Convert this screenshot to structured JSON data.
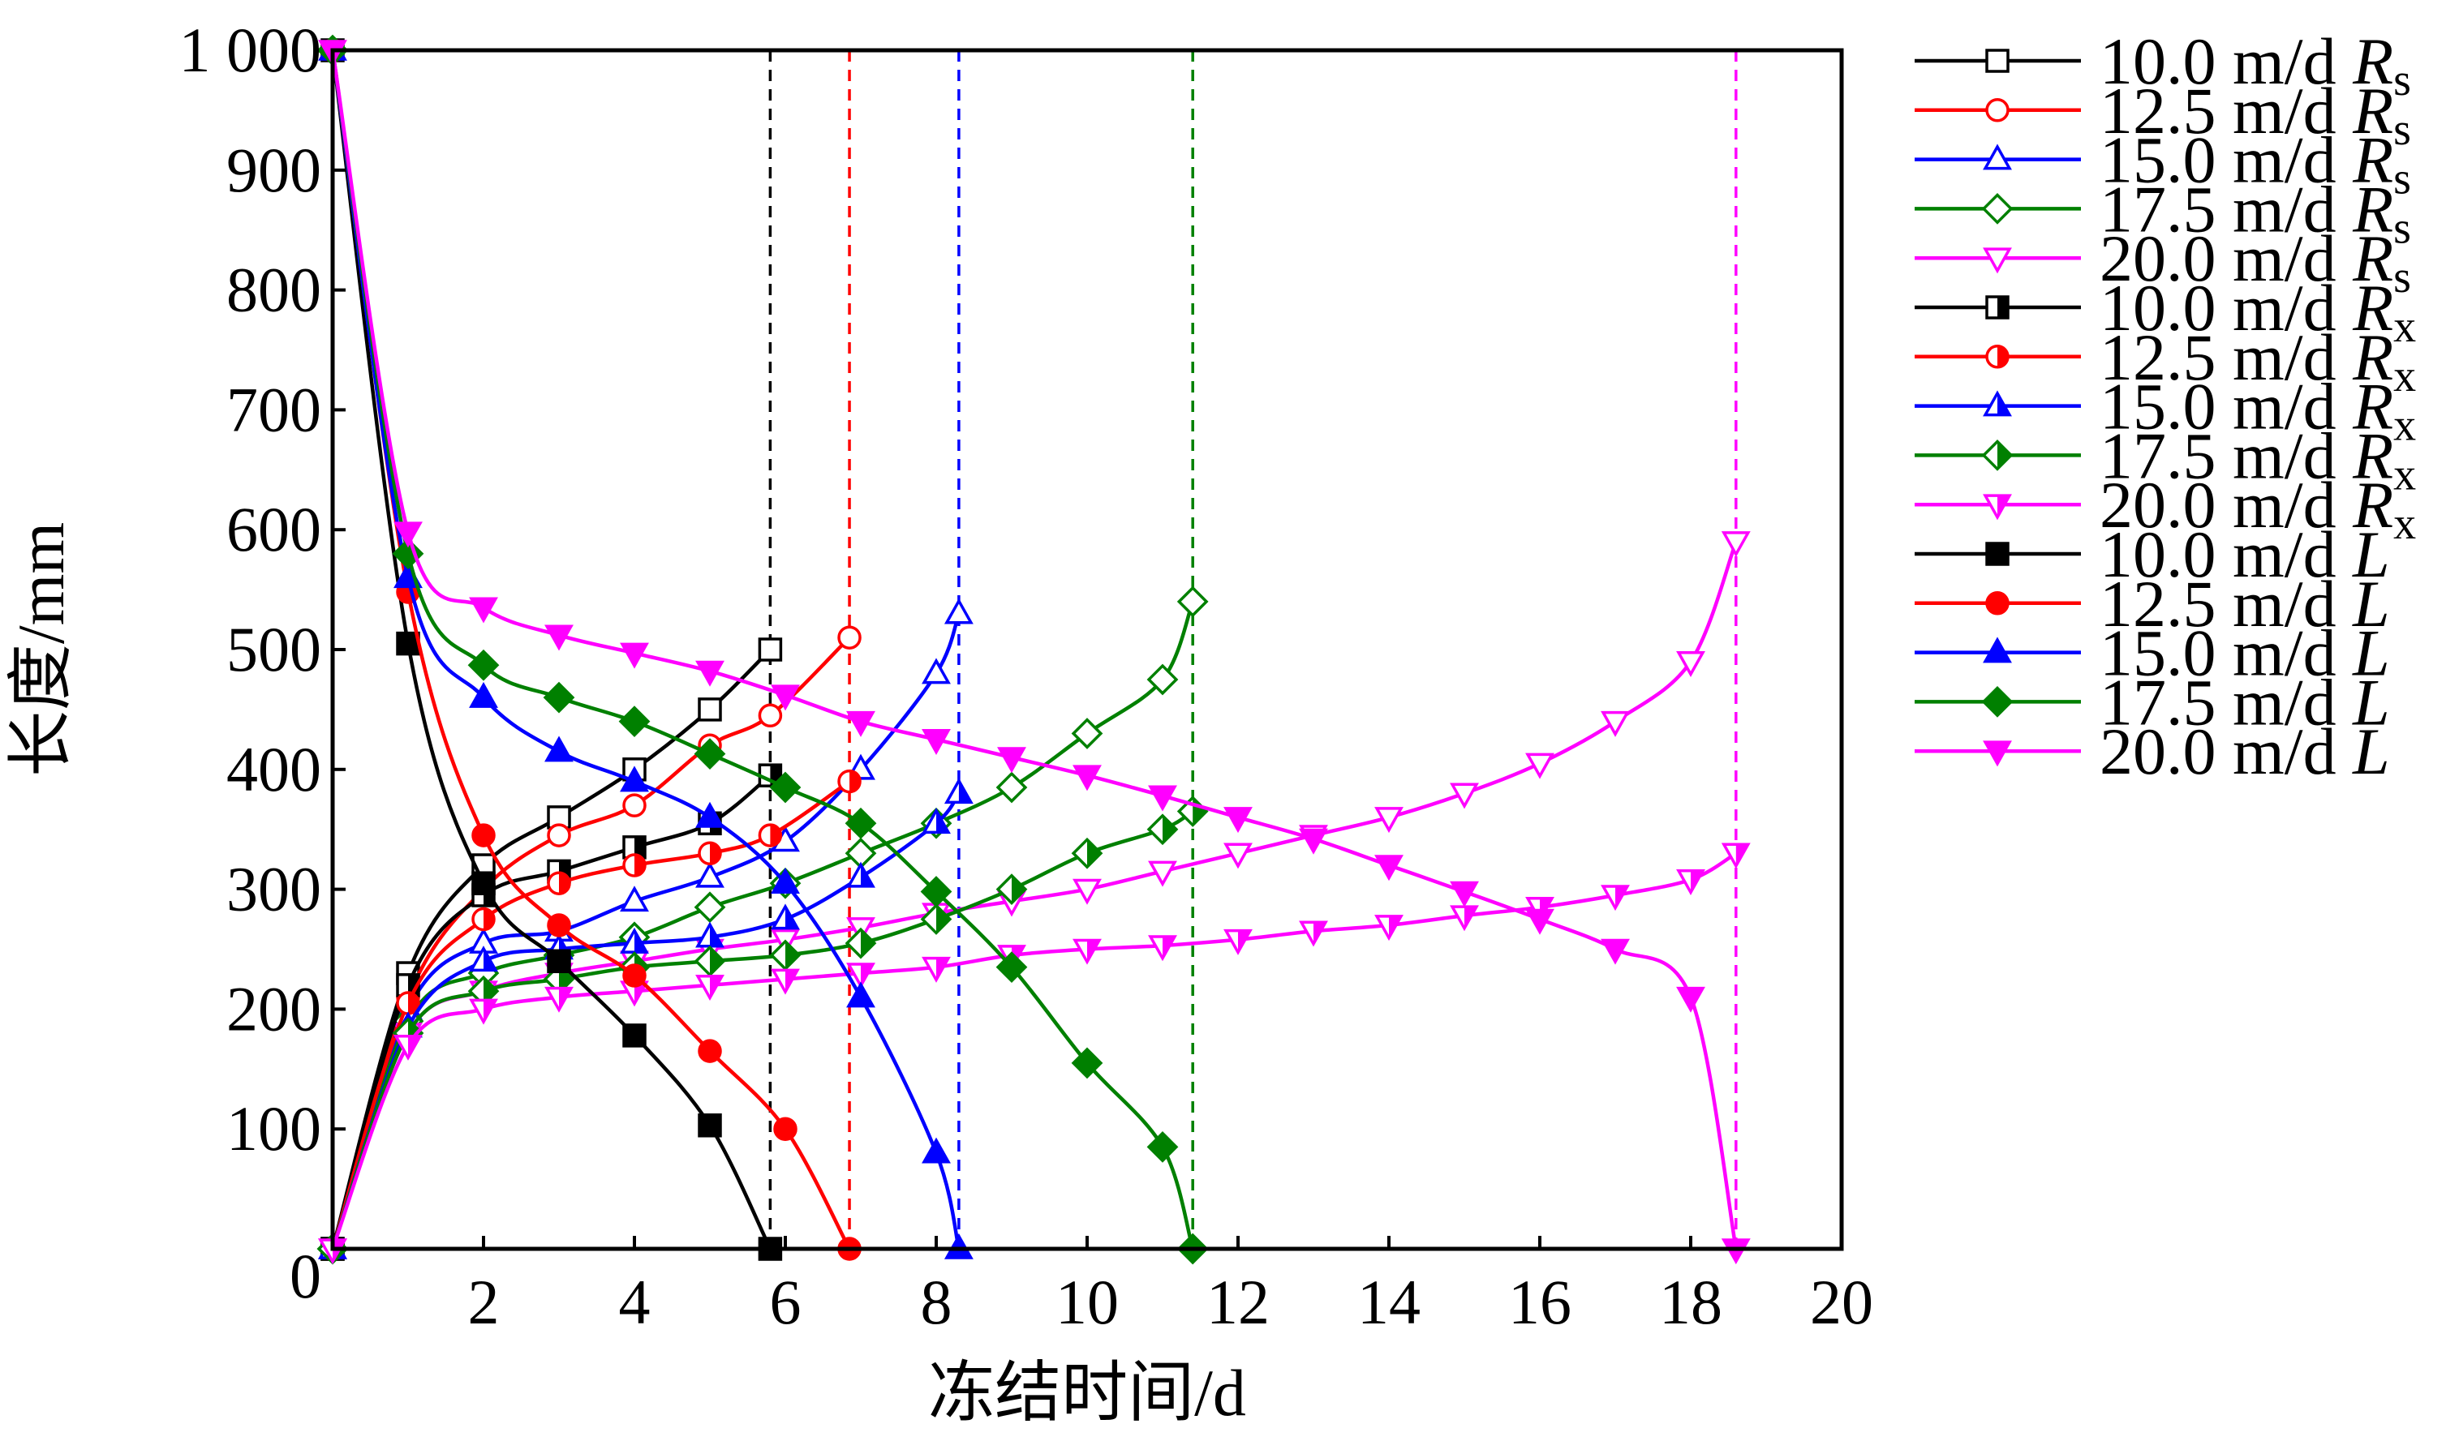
{
  "chart_data": {
    "type": "line",
    "title": "",
    "xlabel": "冻结时间/d",
    "ylabel": "长度/mm",
    "xlim": [
      0,
      20
    ],
    "ylim": [
      0,
      1000
    ],
    "xticks": [
      2,
      4,
      6,
      8,
      10,
      12,
      14,
      16,
      18,
      20
    ],
    "xtick_labels": [
      "2",
      "4",
      "6",
      "8",
      "10",
      "12",
      "14",
      "16",
      "18",
      "20"
    ],
    "yticks": [
      0,
      100,
      200,
      300,
      400,
      500,
      600,
      700,
      800,
      900,
      1000
    ],
    "ytick_labels": [
      "0",
      "100",
      "200",
      "300",
      "400",
      "500",
      "600",
      "700",
      "800",
      "900",
      "1 000"
    ],
    "x_origin_label": "0",
    "grid": false,
    "legend_position": "outside-right",
    "colors": {
      "10.0": "#000000",
      "12.5": "#ff0000",
      "15.0": "#0000ff",
      "17.5": "#008000",
      "20.0": "#ff00ff"
    },
    "markers": {
      "10.0": "square",
      "12.5": "circle",
      "15.0": "triangle-up",
      "17.5": "diamond",
      "20.0": "triangle-down"
    },
    "vlines": [
      {
        "x": 5.8,
        "color": "#000000"
      },
      {
        "x": 6.85,
        "color": "#ff0000"
      },
      {
        "x": 8.3,
        "color": "#0000ff"
      },
      {
        "x": 11.4,
        "color": "#008000"
      },
      {
        "x": 18.6,
        "color": "#ff00ff"
      }
    ],
    "series": [
      {
        "name": "10.0 m/d Rs",
        "speed": "10.0",
        "quantity": "Rs",
        "fill": "open",
        "x": [
          0,
          1,
          2,
          3,
          4,
          5,
          5.8
        ],
        "y": [
          0,
          230,
          320,
          360,
          400,
          450,
          500
        ]
      },
      {
        "name": "12.5 m/d Rs",
        "speed": "12.5",
        "quantity": "Rs",
        "fill": "open",
        "x": [
          0,
          1,
          2,
          3,
          4,
          5,
          5.8,
          6.85
        ],
        "y": [
          0,
          210,
          300,
          345,
          370,
          420,
          445,
          510
        ]
      },
      {
        "name": "15.0 m/d Rs",
        "speed": "15.0",
        "quantity": "Rs",
        "fill": "open",
        "x": [
          0,
          1,
          2,
          3,
          4,
          5,
          6,
          7,
          8,
          8.3
        ],
        "y": [
          0,
          200,
          255,
          265,
          290,
          310,
          340,
          400,
          480,
          530
        ]
      },
      {
        "name": "17.5 m/d Rs",
        "speed": "17.5",
        "quantity": "Rs",
        "fill": "open",
        "x": [
          0,
          1,
          2,
          3,
          4,
          5,
          6,
          7,
          8,
          9,
          10,
          11,
          11.4
        ],
        "y": [
          0,
          190,
          230,
          245,
          260,
          285,
          305,
          330,
          355,
          385,
          430,
          475,
          540
        ]
      },
      {
        "name": "20.0 m/d Rs",
        "speed": "20.0",
        "quantity": "Rs",
        "fill": "open",
        "x": [
          0,
          1,
          2,
          3,
          4,
          5,
          6,
          7,
          8,
          9,
          10,
          11,
          12,
          13,
          14,
          15,
          16,
          17,
          18,
          18.6
        ],
        "y": [
          0,
          180,
          215,
          230,
          240,
          250,
          258,
          268,
          280,
          290,
          300,
          315,
          330,
          345,
          360,
          380,
          405,
          440,
          490,
          590
        ]
      },
      {
        "name": "10.0 m/d Rx",
        "speed": "10.0",
        "quantity": "Rx",
        "fill": "half",
        "x": [
          0,
          1,
          2,
          3,
          4,
          5,
          5.8
        ],
        "y": [
          0,
          220,
          295,
          315,
          335,
          355,
          395
        ]
      },
      {
        "name": "12.5 m/d Rx",
        "speed": "12.5",
        "quantity": "Rx",
        "fill": "half",
        "x": [
          0,
          1,
          2,
          3,
          4,
          5,
          5.8,
          6.85
        ],
        "y": [
          0,
          205,
          275,
          305,
          320,
          330,
          345,
          390
        ]
      },
      {
        "name": "15.0 m/d Rx",
        "speed": "15.0",
        "quantity": "Rx",
        "fill": "half",
        "x": [
          0,
          1,
          2,
          3,
          4,
          5,
          6,
          7,
          8,
          8.3
        ],
        "y": [
          0,
          185,
          240,
          250,
          255,
          260,
          275,
          310,
          355,
          380
        ]
      },
      {
        "name": "17.5 m/d Rx",
        "speed": "17.5",
        "quantity": "Rx",
        "fill": "half",
        "x": [
          0,
          1,
          2,
          3,
          4,
          5,
          6,
          7,
          8,
          9,
          10,
          11,
          11.4
        ],
        "y": [
          0,
          180,
          215,
          225,
          235,
          240,
          245,
          255,
          275,
          300,
          330,
          350,
          365
        ]
      },
      {
        "name": "20.0 m/d Rx",
        "speed": "20.0",
        "quantity": "Rx",
        "fill": "half",
        "x": [
          0,
          1,
          2,
          3,
          4,
          5,
          6,
          7,
          8,
          9,
          10,
          11,
          12,
          13,
          14,
          15,
          16,
          17,
          18,
          18.6
        ],
        "y": [
          0,
          170,
          200,
          210,
          215,
          220,
          225,
          230,
          235,
          245,
          250,
          253,
          258,
          265,
          270,
          278,
          285,
          295,
          308,
          330
        ]
      },
      {
        "name": "10.0 m/d L",
        "speed": "10.0",
        "quantity": "L",
        "fill": "solid",
        "x": [
          0,
          1,
          2,
          3,
          4,
          5,
          5.8
        ],
        "y": [
          1000,
          505,
          305,
          240,
          178,
          103,
          0
        ]
      },
      {
        "name": "12.5 m/d L",
        "speed": "12.5",
        "quantity": "L",
        "fill": "solid",
        "x": [
          0,
          1,
          2,
          3,
          4,
          5,
          6,
          6.85
        ],
        "y": [
          1000,
          548,
          345,
          270,
          228,
          165,
          100,
          0
        ]
      },
      {
        "name": "15.0 m/d L",
        "speed": "15.0",
        "quantity": "L",
        "fill": "solid",
        "x": [
          0,
          1,
          2,
          3,
          4,
          5,
          6,
          7,
          8,
          8.3
        ],
        "y": [
          1000,
          560,
          460,
          415,
          390,
          360,
          305,
          210,
          80,
          0
        ]
      },
      {
        "name": "17.5 m/d L",
        "speed": "17.5",
        "quantity": "L",
        "fill": "solid",
        "x": [
          0,
          1,
          2,
          3,
          4,
          5,
          6,
          7,
          8,
          9,
          10,
          11,
          11.4
        ],
        "y": [
          1000,
          580,
          487,
          460,
          440,
          413,
          385,
          355,
          298,
          235,
          155,
          85,
          0
        ]
      },
      {
        "name": "20.0 m/d L",
        "speed": "20.0",
        "quantity": "L",
        "fill": "solid",
        "x": [
          0,
          1,
          2,
          3,
          4,
          5,
          6,
          7,
          8,
          9,
          10,
          11,
          12,
          13,
          14,
          15,
          16,
          17,
          18,
          18.6
        ],
        "y": [
          1000,
          598,
          535,
          512,
          497,
          482,
          462,
          440,
          425,
          410,
          395,
          378,
          360,
          342,
          320,
          298,
          275,
          250,
          210,
          0
        ]
      }
    ],
    "legend": [
      {
        "speed": "10.0",
        "unit": "m/d",
        "symbol": "R",
        "sub": "s",
        "fill": "open"
      },
      {
        "speed": "12.5",
        "unit": "m/d",
        "symbol": "R",
        "sub": "s",
        "fill": "open"
      },
      {
        "speed": "15.0",
        "unit": "m/d",
        "symbol": "R",
        "sub": "s",
        "fill": "open"
      },
      {
        "speed": "17.5",
        "unit": "m/d",
        "symbol": "R",
        "sub": "s",
        "fill": "open"
      },
      {
        "speed": "20.0",
        "unit": "m/d",
        "symbol": "R",
        "sub": "s",
        "fill": "open"
      },
      {
        "speed": "10.0",
        "unit": "m/d",
        "symbol": "R",
        "sub": "x",
        "fill": "half"
      },
      {
        "speed": "12.5",
        "unit": "m/d",
        "symbol": "R",
        "sub": "x",
        "fill": "half"
      },
      {
        "speed": "15.0",
        "unit": "m/d",
        "symbol": "R",
        "sub": "x",
        "fill": "half"
      },
      {
        "speed": "17.5",
        "unit": "m/d",
        "symbol": "R",
        "sub": "x",
        "fill": "half"
      },
      {
        "speed": "20.0",
        "unit": "m/d",
        "symbol": "R",
        "sub": "x",
        "fill": "half"
      },
      {
        "speed": "10.0",
        "unit": "m/d",
        "symbol": "L",
        "sub": "",
        "fill": "solid"
      },
      {
        "speed": "12.5",
        "unit": "m/d",
        "symbol": "L",
        "sub": "",
        "fill": "solid"
      },
      {
        "speed": "15.0",
        "unit": "m/d",
        "symbol": "L",
        "sub": "",
        "fill": "solid"
      },
      {
        "speed": "17.5",
        "unit": "m/d",
        "symbol": "L",
        "sub": "",
        "fill": "solid"
      },
      {
        "speed": "20.0",
        "unit": "m/d",
        "symbol": "L",
        "sub": "",
        "fill": "solid"
      }
    ]
  }
}
